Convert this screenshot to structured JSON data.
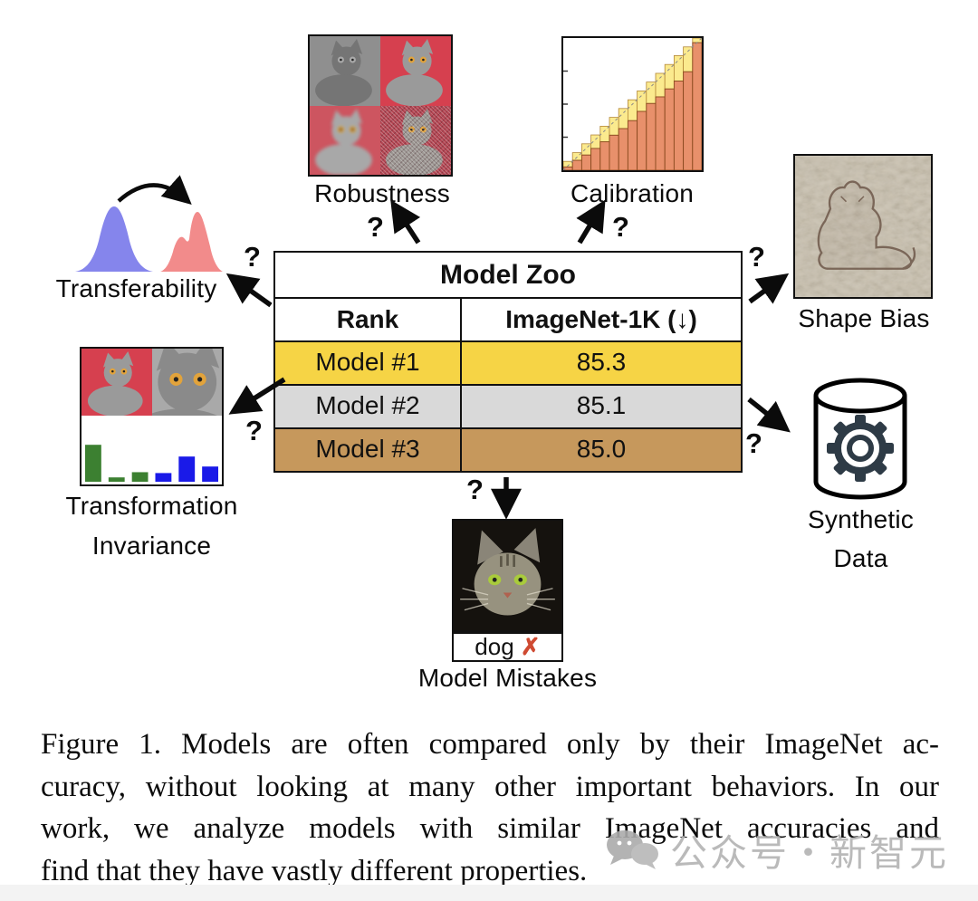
{
  "figure": {
    "question_mark": "?",
    "table": {
      "title": "Model Zoo",
      "col_rank": "Rank",
      "col_metric": "ImageNet-1K (↓)",
      "rows": [
        {
          "name": "Model #1",
          "score": "85.3",
          "color": "#F6D445"
        },
        {
          "name": "Model #2",
          "score": "85.1",
          "color": "#D9D9D9"
        },
        {
          "name": "Model #3",
          "score": "85.0",
          "color": "#C6985C"
        }
      ]
    },
    "nodes": {
      "robustness": {
        "label": "Robustness"
      },
      "calibration": {
        "label": "Calibration"
      },
      "transferability": {
        "label": "Transferability"
      },
      "shape_bias": {
        "label": "Shape Bias"
      },
      "transformation_invariance": {
        "label_line1": "Transformation",
        "label_line2": "Invariance"
      },
      "synthetic_data": {
        "label_line1": "Synthetic",
        "label_line2": "Data"
      },
      "model_mistakes": {
        "label": "Model Mistakes",
        "prediction": "dog",
        "mark": "✗"
      }
    }
  },
  "chart_data": [
    {
      "name": "calibration_reliability_diagram",
      "type": "bar",
      "n_bins": 15,
      "x_confidence_bins": [
        0.067,
        0.133,
        0.2,
        0.267,
        0.333,
        0.4,
        0.467,
        0.533,
        0.6,
        0.667,
        0.733,
        0.8,
        0.867,
        0.933,
        1.0
      ],
      "accuracy_values": [
        0.025,
        0.075,
        0.115,
        0.165,
        0.215,
        0.265,
        0.315,
        0.375,
        0.445,
        0.505,
        0.555,
        0.615,
        0.675,
        0.745,
        0.965
      ],
      "bar_color": "#E8906B",
      "bar_stroke": "#8a4a1f",
      "gap_color": "#FBEA8E",
      "gap_stroke": "#b5893a",
      "diagonal": "dashed identity line",
      "xlim": [
        0,
        1
      ],
      "ylim": [
        0,
        1
      ],
      "grid": false,
      "legend": "none"
    },
    {
      "name": "transformation_invariance_bars",
      "type": "bar",
      "values": [
        0.85,
        0.1,
        0.22,
        0.2,
        0.58,
        0.35
      ],
      "colors": [
        "#3C8031",
        "#3C8031",
        "#3C8031",
        "#1A1AE8",
        "#1A1AE8",
        "#1A1AE8"
      ],
      "ylim": [
        0,
        1
      ],
      "grid": false,
      "legend": "none"
    },
    {
      "name": "transferability_distributions",
      "type": "area",
      "series": [
        {
          "name": "source distribution (unimodal)",
          "color": "#8585EC"
        },
        {
          "name": "target distribution (bimodal)",
          "color": "#F28B8B"
        }
      ],
      "annotation": "curved arrow from source to target"
    }
  ],
  "caption": {
    "lines": [
      "Figure 1.  Models are often compared only by their ImageNet ac-",
      "curacy, without looking at many other important behaviors. In our",
      "work, we analyze models with similar ImageNet accuracies and",
      "find that they have vastly different properties."
    ]
  },
  "watermark": {
    "text": "公众号・新智元"
  }
}
